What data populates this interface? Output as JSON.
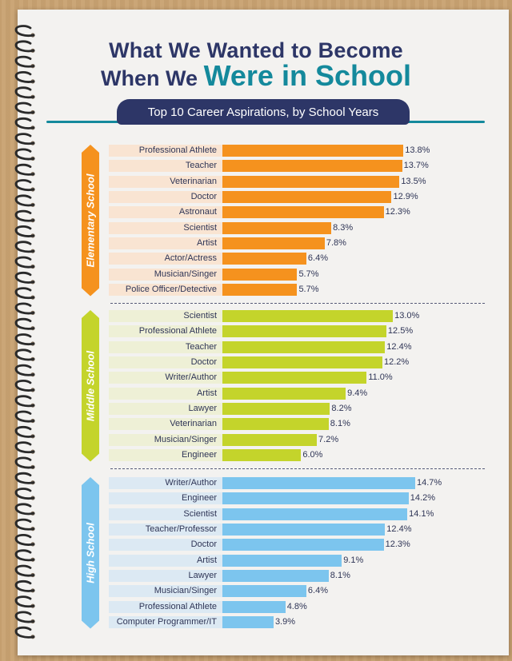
{
  "header": {
    "title_line1": "What We Wanted to Become",
    "title_line2_prefix": "When We ",
    "title_line2_highlight": "Were in School",
    "subtitle": "Top 10 Career Aspirations, by School Years"
  },
  "colors": {
    "elementary": "#f5921e",
    "middle": "#c4d42b",
    "high": "#7cc5ee",
    "title": "#2d3667",
    "accent": "#14899c"
  },
  "chart_data": [
    {
      "type": "bar",
      "orientation": "horizontal",
      "group": "Elementary School",
      "color": "#f5921e",
      "bg": "#f9e4d2",
      "categories": [
        "Professional Athlete",
        "Teacher",
        "Veterinarian",
        "Doctor",
        "Astronaut",
        "Scientist",
        "Artist",
        "Actor/Actress",
        "Musician/Singer",
        "Police Officer/Detective"
      ],
      "values": [
        13.8,
        13.7,
        13.5,
        12.9,
        12.3,
        8.3,
        7.8,
        6.4,
        5.7,
        5.7
      ],
      "labels": [
        "13.8%",
        "13.7%",
        "13.5%",
        "12.9%",
        "12.3%",
        "8.3%",
        "7.8%",
        "6.4%",
        "5.7%",
        "5.7%"
      ]
    },
    {
      "type": "bar",
      "orientation": "horizontal",
      "group": "Middle School",
      "color": "#c4d42b",
      "bg": "#eef0d6",
      "categories": [
        "Scientist",
        "Professional Athlete",
        "Teacher",
        "Doctor",
        "Writer/Author",
        "Artist",
        "Lawyer",
        "Veterinarian",
        "Musician/Singer",
        "Engineer"
      ],
      "values": [
        13.0,
        12.5,
        12.4,
        12.2,
        11.0,
        9.4,
        8.2,
        8.1,
        7.2,
        6.0
      ],
      "labels": [
        "13.0%",
        "12.5%",
        "12.4%",
        "12.2%",
        "11.0%",
        "9.4%",
        "8.2%",
        "8.1%",
        "7.2%",
        "6.0%"
      ]
    },
    {
      "type": "bar",
      "orientation": "horizontal",
      "group": "High School",
      "color": "#7cc5ee",
      "bg": "#dce9f3",
      "categories": [
        "Writer/Author",
        "Engineer",
        "Scientist",
        "Teacher/Professor",
        "Doctor",
        "Artist",
        "Lawyer",
        "Musician/Singer",
        "Professional Athlete",
        "Computer Programmer/IT"
      ],
      "values": [
        14.7,
        14.2,
        14.1,
        12.4,
        12.3,
        9.1,
        8.1,
        6.4,
        4.8,
        3.9
      ],
      "labels": [
        "14.7%",
        "14.2%",
        "14.1%",
        "12.4%",
        "12.3%",
        "9.1%",
        "8.1%",
        "6.4%",
        "4.8%",
        "3.9%"
      ]
    }
  ]
}
